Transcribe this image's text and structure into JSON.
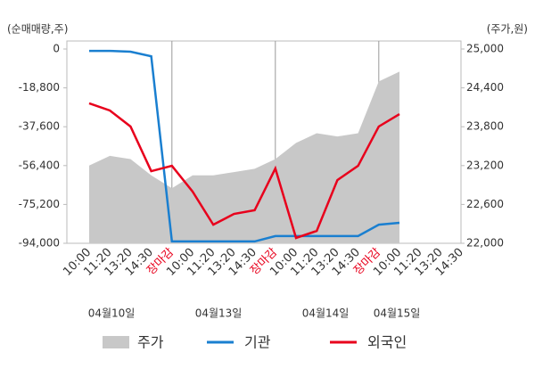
{
  "chart_data": {
    "type": "line",
    "y_axis_label": "(순매매량,주)",
    "y2_axis_label": "(주가,원)",
    "categories": [
      "10:00",
      "11:20",
      "13:20",
      "14:30",
      "장마감",
      "10:00",
      "11:20",
      "13:20",
      "14:30",
      "장마감",
      "10:00",
      "11:20",
      "13:20",
      "14:30",
      "장마감",
      "10:00",
      "11:20",
      "13:20",
      "14:30"
    ],
    "highlight_category": "장마감",
    "highlight_color": "#e8001c",
    "date_labels": [
      "04월10일",
      "04월13일",
      "04월14일",
      "04월15일"
    ],
    "ylim": [
      -94000,
      0
    ],
    "yticks": [
      {
        "value": 0,
        "label": "0"
      },
      {
        "value": -18800,
        "label": "-18,800"
      },
      {
        "value": -37600,
        "label": "-37,600"
      },
      {
        "value": -56400,
        "label": "-56,400"
      },
      {
        "value": -75200,
        "label": "-75,200"
      },
      {
        "value": -94000,
        "label": "-94,000"
      }
    ],
    "y2lim": [
      22000,
      25000
    ],
    "y2ticks": [
      {
        "value": 25000,
        "label": "25,000"
      },
      {
        "value": 24400,
        "label": "24,400"
      },
      {
        "value": 23800,
        "label": "23,800"
      },
      {
        "value": 23200,
        "label": "23,200"
      },
      {
        "value": 22600,
        "label": "22,600"
      },
      {
        "value": 22000,
        "label": "22,000"
      }
    ],
    "series": [
      {
        "name": "주가",
        "color": "#c8c8c8",
        "axis": "y2",
        "kind": "area",
        "values": [
          23200,
          23350,
          23300,
          23050,
          22850,
          23050,
          23050,
          23100,
          23150,
          23300,
          23550,
          23700,
          23650,
          23700,
          24500,
          24650,
          null,
          null,
          null
        ]
      },
      {
        "name": "기관",
        "color": "#1a7fd0",
        "kind": "line",
        "values": [
          -900,
          -900,
          -1300,
          -3500,
          -93100,
          -93100,
          -93100,
          -93100,
          -93100,
          -90500,
          -90500,
          -90500,
          -90500,
          -90500,
          -85000,
          -84100,
          null,
          null,
          null
        ]
      },
      {
        "name": "외국인",
        "color": "#e8001c",
        "kind": "line",
        "values": [
          -26300,
          -29750,
          -37500,
          -59100,
          -56500,
          -69000,
          -85000,
          -79800,
          -78000,
          -57800,
          -91400,
          -88000,
          -63400,
          -56500,
          -37500,
          -31500,
          null,
          null,
          null
        ]
      }
    ]
  }
}
